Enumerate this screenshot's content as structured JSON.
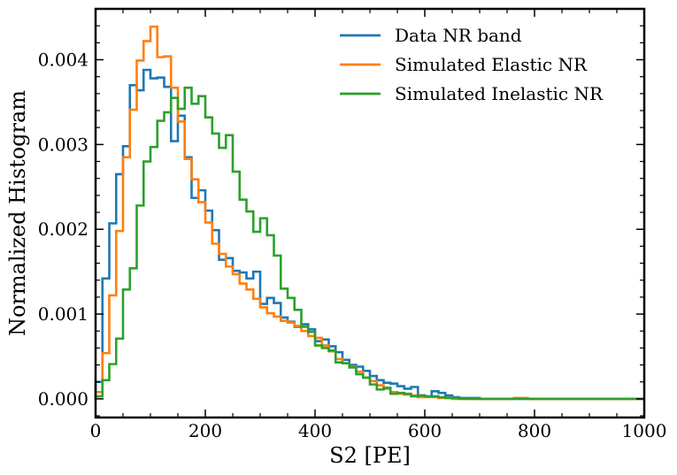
{
  "chart_data": {
    "type": "step-histogram",
    "xlabel": "S2 [PE]",
    "ylabel": "Normalized Histogram",
    "xlim": [
      0,
      1000
    ],
    "ylim": [
      -0.00022,
      0.0046
    ],
    "xticks": [
      0,
      200,
      400,
      600,
      800,
      1000
    ],
    "xtick_labels": [
      "0",
      "200",
      "400",
      "600",
      "800",
      "1000"
    ],
    "yticks": [
      0.0,
      0.001,
      0.002,
      0.003,
      0.004
    ],
    "ytick_labels": [
      "0.000",
      "0.001",
      "0.002",
      "0.003",
      "0.004"
    ],
    "bin_width": 12.5,
    "bin_edges_start": 0,
    "legend_location": "top-right",
    "series": [
      {
        "name": "Data NR band",
        "color": "#1f77b4",
        "values": [
          0.0002,
          0.00142,
          0.00207,
          0.00265,
          0.00298,
          0.0037,
          0.00364,
          0.00388,
          0.00378,
          0.00379,
          0.00368,
          0.00304,
          0.00334,
          0.00285,
          0.00237,
          0.00246,
          0.00222,
          0.00199,
          0.00164,
          0.00166,
          0.00151,
          0.00149,
          0.00142,
          0.0015,
          0.00112,
          0.00119,
          0.00113,
          0.00096,
          0.00091,
          0.00085,
          0.00088,
          0.00082,
          0.00068,
          0.0007,
          0.00062,
          0.00055,
          0.00046,
          0.0004,
          0.00038,
          0.00033,
          0.00027,
          0.00022,
          0.00019,
          0.00018,
          0.00015,
          0.00012,
          0.00014,
          4e-05,
          3e-05,
          9e-05,
          7e-05,
          4e-05,
          2e-05,
          1e-05,
          1e-05,
          1e-05,
          0.0,
          0.0,
          0.0,
          0.0,
          0.0,
          0.0,
          0.0,
          0.0,
          0.0,
          0.0,
          0.0,
          0.0,
          0.0,
          0.0,
          0.0,
          0.0,
          0.0,
          0.0,
          0.0,
          0.0,
          0.0,
          0.0,
          0.0,
          0.0
        ]
      },
      {
        "name": "Simulated Elastic NR",
        "color": "#ff7f0e",
        "values": [
          8e-05,
          0.00054,
          0.00122,
          0.00198,
          0.00285,
          0.00341,
          0.00399,
          0.00422,
          0.00439,
          0.00403,
          0.00404,
          0.00367,
          0.00327,
          0.00283,
          0.00259,
          0.00232,
          0.00208,
          0.00183,
          0.00171,
          0.00156,
          0.00147,
          0.00136,
          0.00129,
          0.00118,
          0.00108,
          0.00101,
          0.00097,
          0.00092,
          0.0009,
          0.00086,
          0.0008,
          0.00074,
          0.00072,
          0.00063,
          0.00056,
          0.00047,
          0.00042,
          0.00038,
          0.00032,
          0.00025,
          0.00021,
          0.00016,
          0.00012,
          8e-05,
          6e-05,
          5e-05,
          4e-05,
          2e-05,
          2e-05,
          2e-05,
          1e-05,
          1e-05,
          0.0,
          0.0,
          0.0,
          0.0,
          0.0,
          0.0,
          0.0,
          0.0,
          0.0,
          1e-05,
          1e-05,
          0.0,
          0.0,
          0.0,
          0.0,
          0.0,
          0.0,
          0.0,
          0.0,
          0.0,
          0.0,
          0.0,
          0.0,
          0.0,
          0.0,
          0.0,
          0.0,
          0.0
        ]
      },
      {
        "name": "Simulated Inelastic NR",
        "color": "#2ca02c",
        "values": [
          3e-05,
          0.00022,
          0.00041,
          0.00071,
          0.00129,
          0.00154,
          0.00228,
          0.0028,
          0.00297,
          0.00328,
          0.00338,
          0.00355,
          0.00342,
          0.00367,
          0.00348,
          0.00357,
          0.00332,
          0.00313,
          0.00296,
          0.00311,
          0.00268,
          0.00235,
          0.00221,
          0.00197,
          0.00213,
          0.00193,
          0.00169,
          0.0013,
          0.00119,
          0.00105,
          0.00085,
          0.00079,
          0.00063,
          0.0006,
          0.00057,
          0.00043,
          0.00042,
          0.00037,
          0.00029,
          0.00025,
          0.00017,
          0.00011,
          0.00013,
          6e-05,
          7e-05,
          6e-05,
          3e-05,
          4e-05,
          3e-05,
          3e-05,
          2e-05,
          1e-05,
          1e-05,
          0.0,
          0.0,
          0.0,
          0.0,
          0.0,
          0.0,
          0.0,
          0.0,
          0.0,
          0.0,
          0.0,
          0.0,
          0.0,
          0.0,
          0.0,
          0.0,
          0.0,
          0.0,
          0.0,
          0.0,
          0.0,
          0.0,
          0.0,
          0.0,
          0.0,
          0.0,
          0.0
        ]
      }
    ]
  }
}
